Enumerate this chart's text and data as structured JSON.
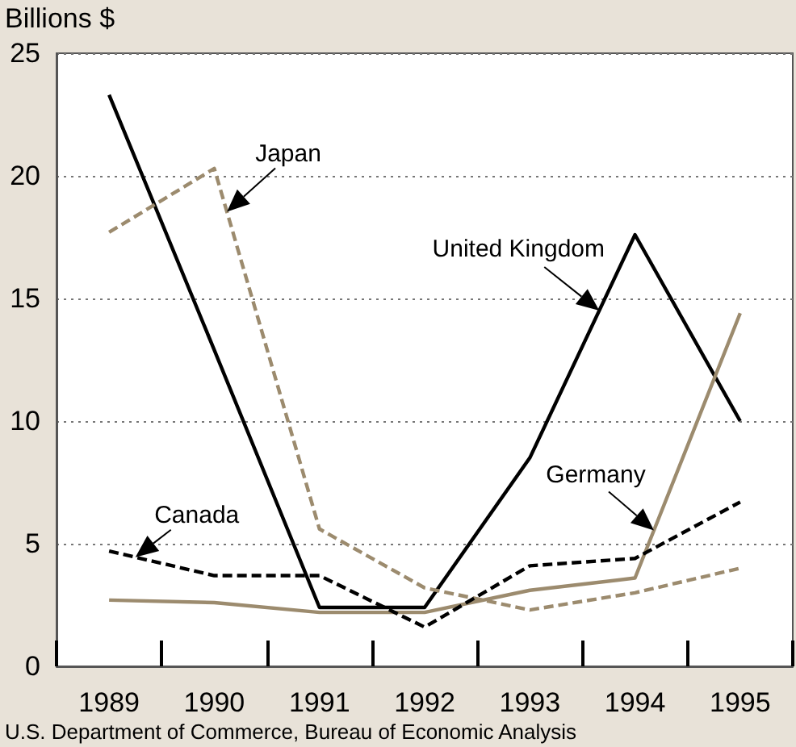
{
  "chart_data": {
    "type": "line",
    "ylabel": "Billions $",
    "annotations": [
      "U.S. Department of Commerce, Bureau of Economic Analysis"
    ],
    "categories": [
      "1989",
      "1990",
      "1991",
      "1992",
      "1993",
      "1994",
      "1995"
    ],
    "series": [
      {
        "name": "United Kingdom",
        "color": "#000000",
        "line_style": "solid",
        "values": [
          23.3,
          12.9,
          2.4,
          2.4,
          8.5,
          17.6,
          10.0
        ]
      },
      {
        "name": "Japan",
        "color": "#9c8b6e",
        "line_style": "dashed",
        "values": [
          17.7,
          20.3,
          5.6,
          3.2,
          2.3,
          3.0,
          4.0
        ]
      },
      {
        "name": "Germany",
        "color": "#9c8b6e",
        "line_style": "solid",
        "values": [
          2.7,
          2.6,
          2.2,
          2.2,
          3.1,
          3.6,
          14.4
        ]
      },
      {
        "name": "Canada",
        "color": "#000000",
        "line_style": "dashed",
        "values": [
          4.7,
          3.7,
          3.7,
          1.6,
          4.1,
          4.4,
          6.7
        ]
      }
    ],
    "ylim": [
      0,
      25
    ],
    "yticks": [
      0,
      5,
      10,
      15,
      20,
      25
    ],
    "grid": "y",
    "legend": false,
    "marker": "none"
  }
}
